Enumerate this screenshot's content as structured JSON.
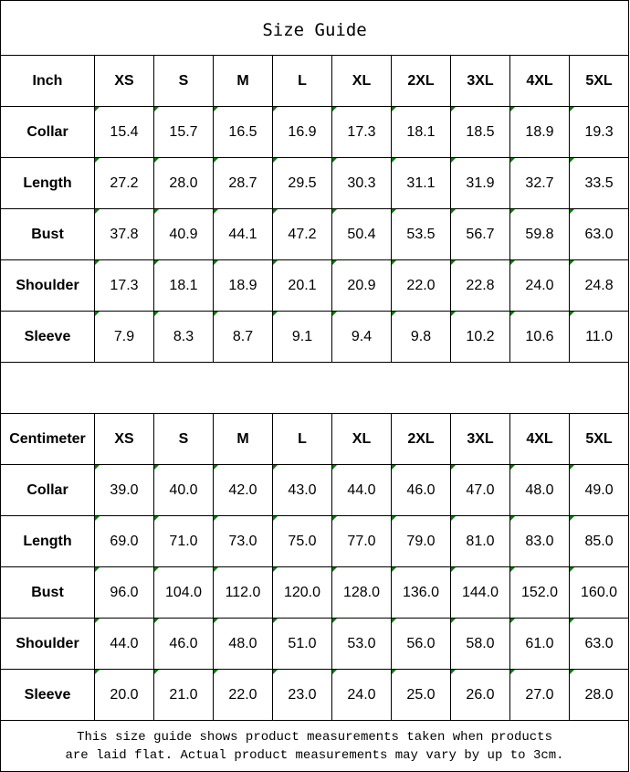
{
  "title": "Size Guide",
  "sizes": [
    "XS",
    "S",
    "M",
    "L",
    "XL",
    "2XL",
    "3XL",
    "4XL",
    "5XL"
  ],
  "inch": {
    "unit_label": "Inch",
    "rows": [
      {
        "label": "Collar",
        "values": [
          "15.4",
          "15.7",
          "16.5",
          "16.9",
          "17.3",
          "18.1",
          "18.5",
          "18.9",
          "19.3"
        ]
      },
      {
        "label": "Length",
        "values": [
          "27.2",
          "28.0",
          "28.7",
          "29.5",
          "30.3",
          "31.1",
          "31.9",
          "32.7",
          "33.5"
        ]
      },
      {
        "label": "Bust",
        "values": [
          "37.8",
          "40.9",
          "44.1",
          "47.2",
          "50.4",
          "53.5",
          "56.7",
          "59.8",
          "63.0"
        ]
      },
      {
        "label": "Shoulder",
        "values": [
          "17.3",
          "18.1",
          "18.9",
          "20.1",
          "20.9",
          "22.0",
          "22.8",
          "24.0",
          "24.8"
        ]
      },
      {
        "label": "Sleeve",
        "values": [
          "7.9",
          "8.3",
          "8.7",
          "9.1",
          "9.4",
          "9.8",
          "10.2",
          "10.6",
          "11.0"
        ]
      }
    ]
  },
  "cm": {
    "unit_label": "Centimeter",
    "rows": [
      {
        "label": "Collar",
        "values": [
          "39.0",
          "40.0",
          "42.0",
          "43.0",
          "44.0",
          "46.0",
          "47.0",
          "48.0",
          "49.0"
        ]
      },
      {
        "label": "Length",
        "values": [
          "69.0",
          "71.0",
          "73.0",
          "75.0",
          "77.0",
          "79.0",
          "81.0",
          "83.0",
          "85.0"
        ]
      },
      {
        "label": "Bust",
        "values": [
          "96.0",
          "104.0",
          "112.0",
          "120.0",
          "128.0",
          "136.0",
          "144.0",
          "152.0",
          "160.0"
        ]
      },
      {
        "label": "Shoulder",
        "values": [
          "44.0",
          "46.0",
          "48.0",
          "51.0",
          "53.0",
          "56.0",
          "58.0",
          "61.0",
          "63.0"
        ]
      },
      {
        "label": "Sleeve",
        "values": [
          "20.0",
          "21.0",
          "22.0",
          "23.0",
          "24.0",
          "25.0",
          "26.0",
          "27.0",
          "28.0"
        ]
      }
    ]
  },
  "note": {
    "line1": "This size guide shows product measurements taken when products",
    "line2": "are laid flat. Actual product measurements may vary by up to 3cm."
  },
  "colors": {
    "indicator": "#0a7a0a",
    "border": "#000000"
  }
}
